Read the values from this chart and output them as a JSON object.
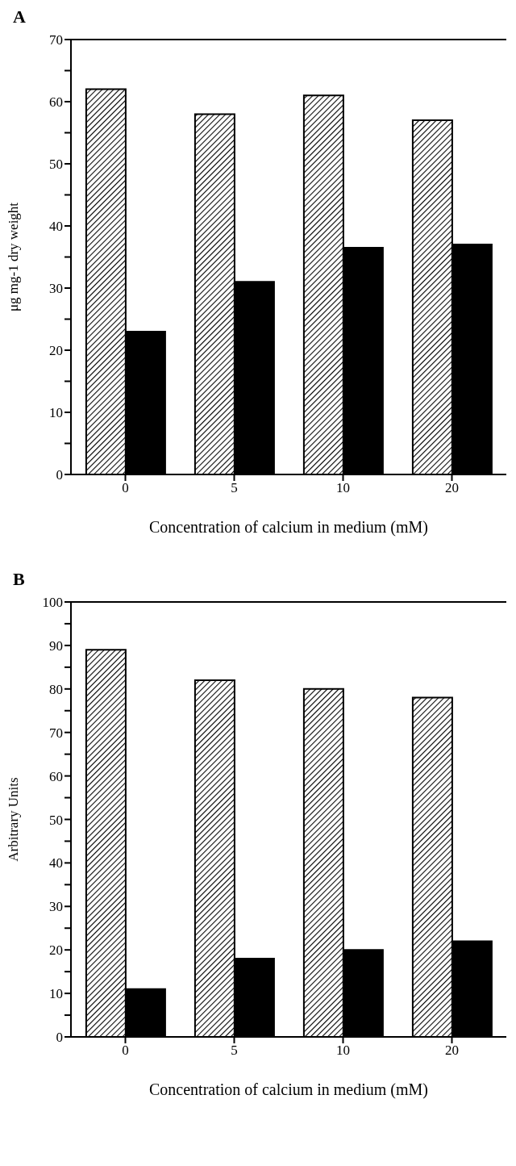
{
  "chart_data": [
    {
      "type": "bar",
      "title": "A",
      "xlabel": "Concentration of calcium in medium (mM)",
      "ylabel": "μg mg-1 dry weight",
      "categories": [
        "0",
        "5",
        "10",
        "20"
      ],
      "series": [
        {
          "color": "#000000",
          "values": [
            62,
            58,
            61,
            57
          ]
        },
        {
          "color": "#000000",
          "values": [
            23,
            31,
            36.5,
            37
          ]
        }
      ],
      "ylim": [
        0,
        70
      ],
      "yticks": [
        0,
        {
          "value": 5,
          "label": null
        },
        10,
        {
          "value": 15,
          "label": null
        },
        20,
        {
          "value": 25,
          "label": null
        },
        30,
        {
          "value": 35,
          "label": null
        },
        40,
        {
          "value": 45,
          "label": null
        },
        50,
        {
          "value": 55,
          "label": null
        },
        60,
        {
          "value": 65,
          "label": null
        },
        70
      ],
      "grid": false
    },
    {
      "type": "bar",
      "title": "B",
      "xlabel": "Concentration of calcium in medium (mM)",
      "ylabel": "Arbitrary Units",
      "categories": [
        "0",
        "5",
        "10",
        "20"
      ],
      "series": [
        {
          "color": "#000000",
          "values": [
            89,
            82,
            80,
            78
          ]
        },
        {
          "color": "#000000",
          "values": [
            11,
            18,
            20,
            22
          ]
        }
      ],
      "ylim": [
        0,
        100
      ],
      "yticks": [
        0,
        {
          "value": 5,
          "label": null
        },
        10,
        {
          "value": 15,
          "label": null
        },
        20,
        {
          "value": 25,
          "label": null
        },
        30,
        {
          "value": 35,
          "label": null
        },
        40,
        {
          "value": 45,
          "label": null
        },
        50,
        {
          "value": 55,
          "label": null
        },
        60,
        {
          "value": 65,
          "label": null
        },
        70,
        {
          "value": 75,
          "label": null
        },
        80,
        {
          "value": 85,
          "label": null
        },
        90,
        {
          "value": 95,
          "label": null
        },
        100
      ],
      "grid": false
    }
  ]
}
